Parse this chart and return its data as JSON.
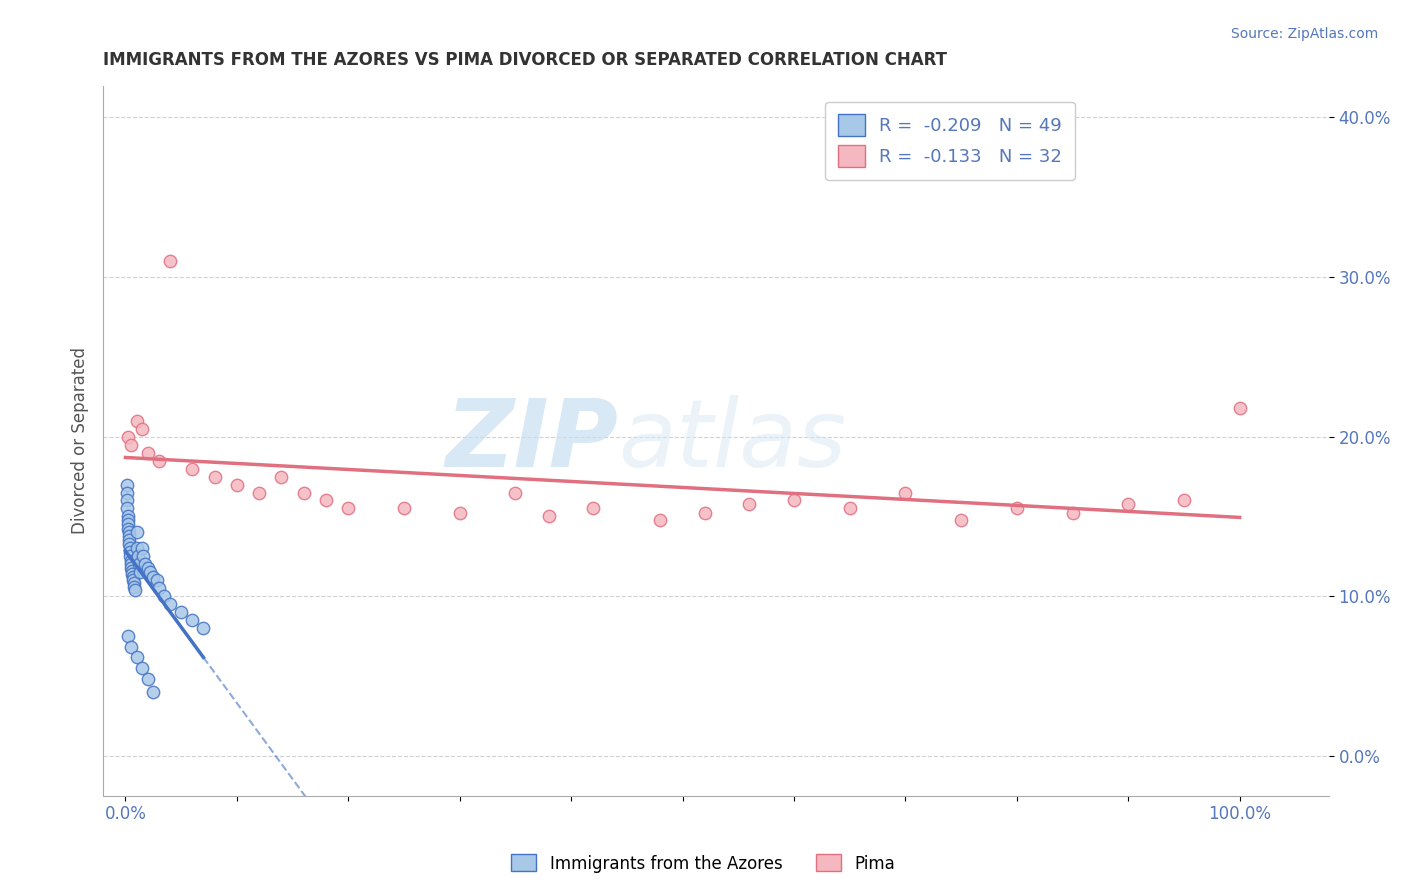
{
  "title": "IMMIGRANTS FROM THE AZORES VS PIMA DIVORCED OR SEPARATED CORRELATION CHART",
  "source": "Source: ZipAtlas.com",
  "ylabel": "Divorced or Separated",
  "legend_blue_r": "R =  -0.209",
  "legend_blue_n": "N = 49",
  "legend_pink_r": "R =  -0.133",
  "legend_pink_n": "N = 32",
  "blue_color": "#a8c8e8",
  "pink_color": "#f5b8c0",
  "blue_line_color": "#4472c4",
  "pink_line_color": "#e07080",
  "blue_scatter": [
    [
      0.001,
      0.17
    ],
    [
      0.001,
      0.165
    ],
    [
      0.001,
      0.16
    ],
    [
      0.001,
      0.155
    ],
    [
      0.002,
      0.15
    ],
    [
      0.002,
      0.148
    ],
    [
      0.002,
      0.145
    ],
    [
      0.002,
      0.142
    ],
    [
      0.003,
      0.14
    ],
    [
      0.003,
      0.138
    ],
    [
      0.003,
      0.135
    ],
    [
      0.003,
      0.133
    ],
    [
      0.004,
      0.13
    ],
    [
      0.004,
      0.128
    ],
    [
      0.004,
      0.125
    ],
    [
      0.005,
      0.122
    ],
    [
      0.005,
      0.12
    ],
    [
      0.005,
      0.118
    ],
    [
      0.006,
      0.116
    ],
    [
      0.006,
      0.114
    ],
    [
      0.007,
      0.112
    ],
    [
      0.007,
      0.11
    ],
    [
      0.008,
      0.108
    ],
    [
      0.008,
      0.106
    ],
    [
      0.009,
      0.104
    ],
    [
      0.01,
      0.14
    ],
    [
      0.01,
      0.13
    ],
    [
      0.011,
      0.125
    ],
    [
      0.012,
      0.12
    ],
    [
      0.013,
      0.115
    ],
    [
      0.015,
      0.13
    ],
    [
      0.016,
      0.125
    ],
    [
      0.018,
      0.12
    ],
    [
      0.02,
      0.118
    ],
    [
      0.022,
      0.115
    ],
    [
      0.025,
      0.112
    ],
    [
      0.028,
      0.11
    ],
    [
      0.03,
      0.105
    ],
    [
      0.035,
      0.1
    ],
    [
      0.04,
      0.095
    ],
    [
      0.05,
      0.09
    ],
    [
      0.06,
      0.085
    ],
    [
      0.07,
      0.08
    ],
    [
      0.002,
      0.075
    ],
    [
      0.005,
      0.068
    ],
    [
      0.01,
      0.062
    ],
    [
      0.015,
      0.055
    ],
    [
      0.02,
      0.048
    ],
    [
      0.025,
      0.04
    ]
  ],
  "pink_scatter": [
    [
      0.002,
      0.2
    ],
    [
      0.005,
      0.195
    ],
    [
      0.01,
      0.21
    ],
    [
      0.015,
      0.205
    ],
    [
      0.02,
      0.19
    ],
    [
      0.03,
      0.185
    ],
    [
      0.04,
      0.31
    ],
    [
      0.06,
      0.18
    ],
    [
      0.08,
      0.175
    ],
    [
      0.1,
      0.17
    ],
    [
      0.12,
      0.165
    ],
    [
      0.14,
      0.175
    ],
    [
      0.16,
      0.165
    ],
    [
      0.18,
      0.16
    ],
    [
      0.2,
      0.155
    ],
    [
      0.25,
      0.155
    ],
    [
      0.3,
      0.152
    ],
    [
      0.35,
      0.165
    ],
    [
      0.38,
      0.15
    ],
    [
      0.42,
      0.155
    ],
    [
      0.48,
      0.148
    ],
    [
      0.52,
      0.152
    ],
    [
      0.56,
      0.158
    ],
    [
      0.6,
      0.16
    ],
    [
      0.65,
      0.155
    ],
    [
      0.7,
      0.165
    ],
    [
      0.75,
      0.148
    ],
    [
      0.8,
      0.155
    ],
    [
      0.85,
      0.152
    ],
    [
      0.9,
      0.158
    ],
    [
      0.95,
      0.16
    ],
    [
      1.0,
      0.218
    ]
  ],
  "xlim": [
    -0.02,
    1.08
  ],
  "ylim": [
    -0.025,
    0.42
  ],
  "yticks": [
    0.0,
    0.1,
    0.2,
    0.3,
    0.4
  ],
  "ytick_labels": [
    "0.0%",
    "10.0%",
    "20.0%",
    "30.0%",
    "40.0%"
  ],
  "xticks": [
    0.0,
    0.1,
    0.2,
    0.3,
    0.4,
    0.5,
    0.6,
    0.7,
    0.8,
    0.9,
    1.0
  ],
  "xtick_labels": [
    "0.0%",
    "",
    "",
    "",
    "",
    "",
    "",
    "",
    "",
    "",
    "100.0%"
  ],
  "watermark_zip": "ZIP",
  "watermark_atlas": "atlas",
  "background_color": "#ffffff",
  "grid_color": "#cccccc"
}
